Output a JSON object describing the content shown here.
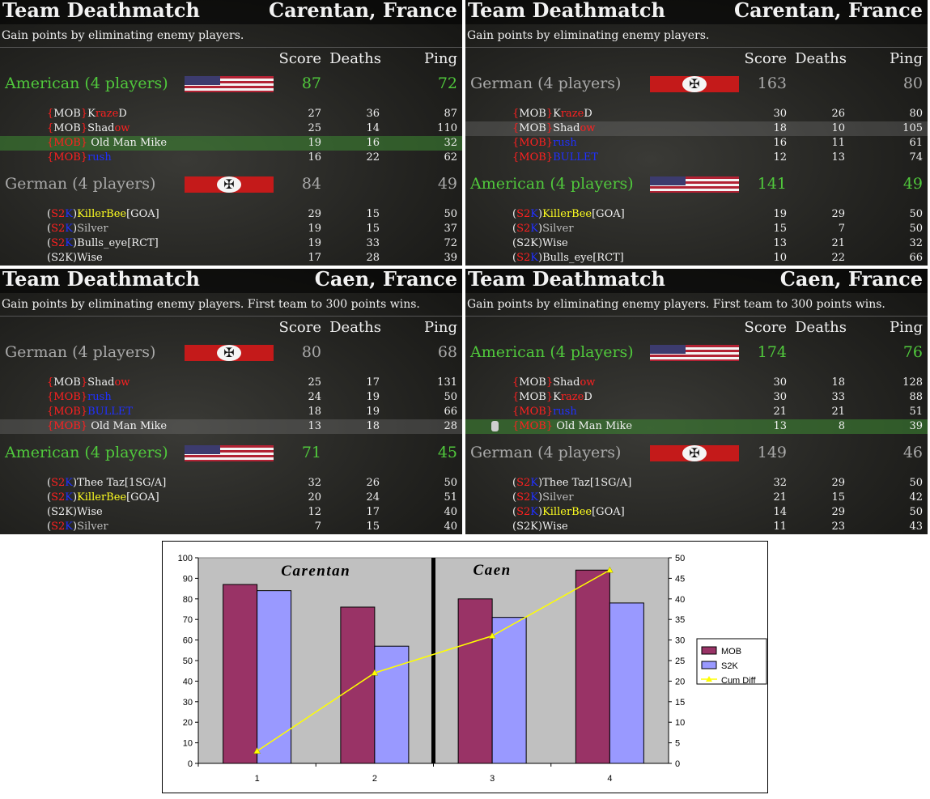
{
  "panels": [
    {
      "mode": "Team Deathmatch",
      "map": "Carentan, France",
      "description": "Gain points by eliminating enemy players.",
      "col_score": "Score",
      "col_deaths": "Deaths",
      "col_ping": "Ping",
      "teams": [
        {
          "name": "American (4 players)",
          "side": "american",
          "score": "87",
          "ping": "72",
          "players": [
            {
              "name": [
                [
                  "{",
                  "red"
                ],
                [
                  "MOB",
                  "wht"
                ],
                [
                  "}",
                  "red"
                ],
                [
                  "K",
                  "wht"
                ],
                [
                  "raze",
                  "red"
                ],
                [
                  "D",
                  "wht"
                ]
              ],
              "score": "27",
              "deaths": "36",
              "ping": "87"
            },
            {
              "name": [
                [
                  "{",
                  "red"
                ],
                [
                  "MOB",
                  "wht"
                ],
                [
                  "}",
                  "red"
                ],
                [
                  "Shad",
                  "wht"
                ],
                [
                  "ow",
                  "red"
                ]
              ],
              "score": "25",
              "deaths": "14",
              "ping": "110"
            },
            {
              "name": [
                [
                  "{MOB}",
                  "red"
                ],
                [
                  " Old Man Mike",
                  "wht"
                ]
              ],
              "score": "19",
              "deaths": "16",
              "ping": "32",
              "highlight": "green"
            },
            {
              "name": [
                [
                  "{MOB}",
                  "red"
                ],
                [
                  "rush",
                  "blu"
                ]
              ],
              "score": "16",
              "deaths": "22",
              "ping": "62"
            }
          ]
        },
        {
          "name": "German (4 players)",
          "side": "german",
          "score": "84",
          "ping": "49",
          "players": [
            {
              "name": [
                [
                  "(",
                  "wht"
                ],
                [
                  "S2",
                  "red"
                ],
                [
                  "K",
                  "blu"
                ],
                [
                  ")",
                  "wht"
                ],
                [
                  "KillerBee",
                  "yel"
                ],
                [
                  "[GOA]",
                  "wht"
                ]
              ],
              "score": "29",
              "deaths": "15",
              "ping": "50"
            },
            {
              "name": [
                [
                  "(",
                  "wht"
                ],
                [
                  "S2",
                  "red"
                ],
                [
                  "K",
                  "blu"
                ],
                [
                  ")",
                  "wht"
                ],
                [
                  "Silver",
                  "gry"
                ]
              ],
              "score": "19",
              "deaths": "15",
              "ping": "37"
            },
            {
              "name": [
                [
                  "(",
                  "wht"
                ],
                [
                  "S2",
                  "red"
                ],
                [
                  "K",
                  "blu"
                ],
                [
                  ")",
                  "wht"
                ],
                [
                  "Bulls_eye[RCT]",
                  "wht"
                ]
              ],
              "score": "19",
              "deaths": "33",
              "ping": "72"
            },
            {
              "name": [
                [
                  "(S2K)Wise",
                  "wht"
                ]
              ],
              "score": "17",
              "deaths": "28",
              "ping": "39"
            }
          ]
        }
      ]
    },
    {
      "mode": "Team Deathmatch",
      "map": "Carentan, France",
      "description": "Gain points by eliminating enemy players.",
      "col_score": "Score",
      "col_deaths": "Deaths",
      "col_ping": "Ping",
      "teams": [
        {
          "name": "German (4 players)",
          "side": "german",
          "score": "163",
          "ping": "80",
          "players": [
            {
              "name": [
                [
                  "{",
                  "red"
                ],
                [
                  "MOB",
                  "wht"
                ],
                [
                  "}",
                  "red"
                ],
                [
                  "K",
                  "wht"
                ],
                [
                  "raze",
                  "red"
                ],
                [
                  "D",
                  "wht"
                ]
              ],
              "score": "30",
              "deaths": "26",
              "ping": "80"
            },
            {
              "name": [
                [
                  "{",
                  "red"
                ],
                [
                  "MOB",
                  "wht"
                ],
                [
                  "}",
                  "red"
                ],
                [
                  "Shad",
                  "wht"
                ],
                [
                  "ow",
                  "red"
                ]
              ],
              "score": "18",
              "deaths": "10",
              "ping": "105",
              "highlight": "grey"
            },
            {
              "name": [
                [
                  "{MOB}",
                  "red"
                ],
                [
                  "rush",
                  "blu"
                ]
              ],
              "score": "16",
              "deaths": "11",
              "ping": "61"
            },
            {
              "name": [
                [
                  "{MOB}",
                  "red"
                ],
                [
                  "BULLET",
                  "blu"
                ]
              ],
              "score": "12",
              "deaths": "13",
              "ping": "74"
            }
          ]
        },
        {
          "name": "American (4 players)",
          "side": "american",
          "score": "141",
          "ping": "49",
          "players": [
            {
              "name": [
                [
                  "(",
                  "wht"
                ],
                [
                  "S2",
                  "red"
                ],
                [
                  "K",
                  "blu"
                ],
                [
                  ")",
                  "wht"
                ],
                [
                  "KillerBee",
                  "yel"
                ],
                [
                  "[GOA]",
                  "wht"
                ]
              ],
              "score": "19",
              "deaths": "29",
              "ping": "50"
            },
            {
              "name": [
                [
                  "(",
                  "wht"
                ],
                [
                  "S2",
                  "red"
                ],
                [
                  "K",
                  "blu"
                ],
                [
                  ")",
                  "wht"
                ],
                [
                  "Silver",
                  "gry"
                ]
              ],
              "score": "15",
              "deaths": "7",
              "ping": "50"
            },
            {
              "name": [
                [
                  "(S2K)Wise",
                  "wht"
                ]
              ],
              "score": "13",
              "deaths": "21",
              "ping": "32"
            },
            {
              "name": [
                [
                  "(",
                  "wht"
                ],
                [
                  "S2",
                  "red"
                ],
                [
                  "K",
                  "blu"
                ],
                [
                  ")",
                  "wht"
                ],
                [
                  "Bulls_eye[RCT]",
                  "wht"
                ]
              ],
              "score": "10",
              "deaths": "22",
              "ping": "66"
            }
          ]
        }
      ]
    },
    {
      "mode": "Team Deathmatch",
      "map": "Caen, France",
      "description": "Gain points by eliminating enemy players. First team to 300 points wins.",
      "col_score": "Score",
      "col_deaths": "Deaths",
      "col_ping": "Ping",
      "teams": [
        {
          "name": "German (4 players)",
          "side": "german",
          "score": "80",
          "ping": "68",
          "players": [
            {
              "name": [
                [
                  "{",
                  "red"
                ],
                [
                  "MOB",
                  "wht"
                ],
                [
                  "}",
                  "red"
                ],
                [
                  "Shad",
                  "wht"
                ],
                [
                  "ow",
                  "red"
                ]
              ],
              "score": "25",
              "deaths": "17",
              "ping": "131"
            },
            {
              "name": [
                [
                  "{MOB}",
                  "red"
                ],
                [
                  "rush",
                  "blu"
                ]
              ],
              "score": "24",
              "deaths": "19",
              "ping": "50"
            },
            {
              "name": [
                [
                  "{MOB}",
                  "red"
                ],
                [
                  "BULLET",
                  "blu"
                ]
              ],
              "score": "18",
              "deaths": "19",
              "ping": "66"
            },
            {
              "name": [
                [
                  "{MOB}",
                  "red"
                ],
                [
                  " Old Man Mike",
                  "wht"
                ]
              ],
              "score": "13",
              "deaths": "18",
              "ping": "28",
              "highlight": "grey"
            }
          ]
        },
        {
          "name": "American (4 players)",
          "side": "american",
          "score": "71",
          "ping": "45",
          "players": [
            {
              "name": [
                [
                  "(",
                  "wht"
                ],
                [
                  "S2",
                  "red"
                ],
                [
                  "K",
                  "blu"
                ],
                [
                  ")",
                  "wht"
                ],
                [
                  "Thee Taz[1SG/A]",
                  "wht"
                ]
              ],
              "score": "32",
              "deaths": "26",
              "ping": "50"
            },
            {
              "name": [
                [
                  "(",
                  "wht"
                ],
                [
                  "S2",
                  "red"
                ],
                [
                  "K",
                  "blu"
                ],
                [
                  ")",
                  "wht"
                ],
                [
                  "KillerBee",
                  "yel"
                ],
                [
                  "[GOA]",
                  "wht"
                ]
              ],
              "score": "20",
              "deaths": "24",
              "ping": "51"
            },
            {
              "name": [
                [
                  "(S2K)Wise",
                  "wht"
                ]
              ],
              "score": "12",
              "deaths": "17",
              "ping": "40"
            },
            {
              "name": [
                [
                  "(",
                  "wht"
                ],
                [
                  "S2",
                  "red"
                ],
                [
                  "K",
                  "blu"
                ],
                [
                  ")",
                  "wht"
                ],
                [
                  "Silver",
                  "gry"
                ]
              ],
              "score": "7",
              "deaths": "15",
              "ping": "40"
            }
          ]
        }
      ]
    },
    {
      "mode": "Team Deathmatch",
      "map": "Caen, France",
      "description": "Gain points by eliminating enemy players. First team to 300 points wins.",
      "col_score": "Score",
      "col_deaths": "Deaths",
      "col_ping": "Ping",
      "teams": [
        {
          "name": "American (4 players)",
          "side": "american",
          "score": "174",
          "ping": "76",
          "players": [
            {
              "name": [
                [
                  "{",
                  "red"
                ],
                [
                  "MOB",
                  "wht"
                ],
                [
                  "}",
                  "red"
                ],
                [
                  "Shad",
                  "wht"
                ],
                [
                  "ow",
                  "red"
                ]
              ],
              "score": "30",
              "deaths": "18",
              "ping": "128"
            },
            {
              "name": [
                [
                  "{",
                  "red"
                ],
                [
                  "MOB",
                  "wht"
                ],
                [
                  "}",
                  "red"
                ],
                [
                  "K",
                  "wht"
                ],
                [
                  "raze",
                  "red"
                ],
                [
                  "D",
                  "wht"
                ]
              ],
              "score": "30",
              "deaths": "33",
              "ping": "88"
            },
            {
              "name": [
                [
                  "{MOB}",
                  "red"
                ],
                [
                  "rush",
                  "blu"
                ]
              ],
              "score": "21",
              "deaths": "21",
              "ping": "51"
            },
            {
              "name": [
                [
                  "{MOB}",
                  "red"
                ],
                [
                  " Old Man Mike",
                  "wht"
                ]
              ],
              "score": "13",
              "deaths": "8",
              "ping": "39",
              "highlight": "green",
              "dogtag": true
            }
          ]
        },
        {
          "name": "German (4 players)",
          "side": "german",
          "score": "149",
          "ping": "46",
          "players": [
            {
              "name": [
                [
                  "(",
                  "wht"
                ],
                [
                  "S2",
                  "red"
                ],
                [
                  "K",
                  "blu"
                ],
                [
                  ")",
                  "wht"
                ],
                [
                  "Thee Taz[1SG/A]",
                  "wht"
                ]
              ],
              "score": "32",
              "deaths": "29",
              "ping": "50"
            },
            {
              "name": [
                [
                  "(",
                  "wht"
                ],
                [
                  "S2",
                  "red"
                ],
                [
                  "K",
                  "blu"
                ],
                [
                  ")",
                  "wht"
                ],
                [
                  "Silver",
                  "gry"
                ]
              ],
              "score": "21",
              "deaths": "15",
              "ping": "42"
            },
            {
              "name": [
                [
                  "(",
                  "wht"
                ],
                [
                  "S2",
                  "red"
                ],
                [
                  "K",
                  "blu"
                ],
                [
                  ")",
                  "wht"
                ],
                [
                  "KillerBee",
                  "yel"
                ],
                [
                  "[GOA]",
                  "wht"
                ]
              ],
              "score": "14",
              "deaths": "29",
              "ping": "50"
            },
            {
              "name": [
                [
                  "(S2K)Wise",
                  "wht"
                ]
              ],
              "score": "11",
              "deaths": "23",
              "ping": "43"
            }
          ]
        }
      ]
    }
  ],
  "colors": {
    "american_text": "#50c83c",
    "german_text": "#a9a9a9",
    "mob_bar": "#993366",
    "s2k_bar": "#9999ff",
    "cum_diff_line": "#ffff00",
    "plot_bg": "#c0c0c0"
  },
  "chart_data": {
    "type": "bar",
    "categories": [
      "1",
      "2",
      "3",
      "4"
    ],
    "series": [
      {
        "name": "MOB",
        "axis": "left",
        "values": [
          87,
          76,
          80,
          94
        ]
      },
      {
        "name": "S2K",
        "axis": "left",
        "values": [
          84,
          57,
          71,
          78
        ]
      },
      {
        "name": "Cum Diff",
        "axis": "right",
        "kind": "line",
        "values": [
          3,
          22,
          31,
          47
        ]
      }
    ],
    "annotations": [
      "Carentan",
      "Caen"
    ],
    "ylim": [
      0,
      100
    ],
    "yticks": [
      "0",
      "10",
      "20",
      "30",
      "40",
      "50",
      "60",
      "70",
      "80",
      "90",
      "100"
    ],
    "y2lim": [
      0,
      50
    ],
    "y2ticks": [
      "0",
      "5",
      "10",
      "15",
      "20",
      "25",
      "30",
      "35",
      "40",
      "45",
      "50"
    ],
    "legend": "right",
    "grid": false
  }
}
